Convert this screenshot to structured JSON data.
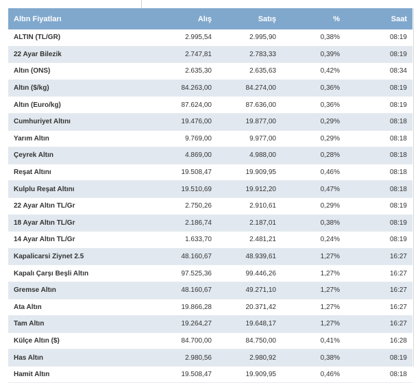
{
  "table": {
    "headers": {
      "name": "Altın Fiyatları",
      "buy": "Alış",
      "sell": "Satış",
      "pct": "%",
      "time": "Saat"
    },
    "rows": [
      {
        "name": "ALTIN (TL/GR)",
        "buy": "2.995,54",
        "sell": "2.995,90",
        "pct": "0,38%",
        "time": "08:19"
      },
      {
        "name": "22 Ayar Bilezik",
        "buy": "2.747,81",
        "sell": "2.783,33",
        "pct": "0,39%",
        "time": "08:19"
      },
      {
        "name": "Altın (ONS)",
        "buy": "2.635,30",
        "sell": "2.635,63",
        "pct": "0,42%",
        "time": "08:34"
      },
      {
        "name": "Altın ($/kg)",
        "buy": "84.263,00",
        "sell": "84.274,00",
        "pct": "0,36%",
        "time": "08:19"
      },
      {
        "name": "Altın (Euro/kg)",
        "buy": "87.624,00",
        "sell": "87.636,00",
        "pct": "0,36%",
        "time": "08:19"
      },
      {
        "name": "Cumhuriyet Altını",
        "buy": "19.476,00",
        "sell": "19.877,00",
        "pct": "0,29%",
        "time": "08:18"
      },
      {
        "name": "Yarım Altın",
        "buy": "9.769,00",
        "sell": "9.977,00",
        "pct": "0,29%",
        "time": "08:18"
      },
      {
        "name": "Çeyrek Altın",
        "buy": "4.869,00",
        "sell": "4.988,00",
        "pct": "0,28%",
        "time": "08:18"
      },
      {
        "name": "Reşat Altını",
        "buy": "19.508,47",
        "sell": "19.909,95",
        "pct": "0,46%",
        "time": "08:18"
      },
      {
        "name": "Kulplu Reşat Altını",
        "buy": "19.510,69",
        "sell": "19.912,20",
        "pct": "0,47%",
        "time": "08:18"
      },
      {
        "name": "22 Ayar Altın TL/Gr",
        "buy": "2.750,26",
        "sell": "2.910,61",
        "pct": "0,29%",
        "time": "08:19"
      },
      {
        "name": "18 Ayar Altın TL/Gr",
        "buy": "2.186,74",
        "sell": "2.187,01",
        "pct": "0,38%",
        "time": "08:19"
      },
      {
        "name": "14 Ayar Altın TL/Gr",
        "buy": "1.633,70",
        "sell": "2.481,21",
        "pct": "0,24%",
        "time": "08:19"
      },
      {
        "name": "Kapalicarsi Ziynet 2.5",
        "buy": "48.160,67",
        "sell": "48.939,61",
        "pct": "1,27%",
        "time": "16:27"
      },
      {
        "name": "Kapalı Çarşı Beşli Altın",
        "buy": "97.525,36",
        "sell": "99.446,26",
        "pct": "1,27%",
        "time": "16:27"
      },
      {
        "name": "Gremse Altın",
        "buy": "48.160,67",
        "sell": "49.271,10",
        "pct": "1,27%",
        "time": "16:27"
      },
      {
        "name": "Ata Altın",
        "buy": "19.866,28",
        "sell": "20.371,42",
        "pct": "1,27%",
        "time": "16:27"
      },
      {
        "name": "Tam Altın",
        "buy": "19.264,27",
        "sell": "19.648,17",
        "pct": "1,27%",
        "time": "16:27"
      },
      {
        "name": "Külçe Altın ($)",
        "buy": "84.700,00",
        "sell": "84.750,00",
        "pct": "0,41%",
        "time": "16:28"
      },
      {
        "name": "Has Altın",
        "buy": "2.980,56",
        "sell": "2.980,92",
        "pct": "0,38%",
        "time": "08:19"
      },
      {
        "name": "Hamit Altın",
        "buy": "19.508,47",
        "sell": "19.909,95",
        "pct": "0,46%",
        "time": "08:18"
      }
    ]
  }
}
